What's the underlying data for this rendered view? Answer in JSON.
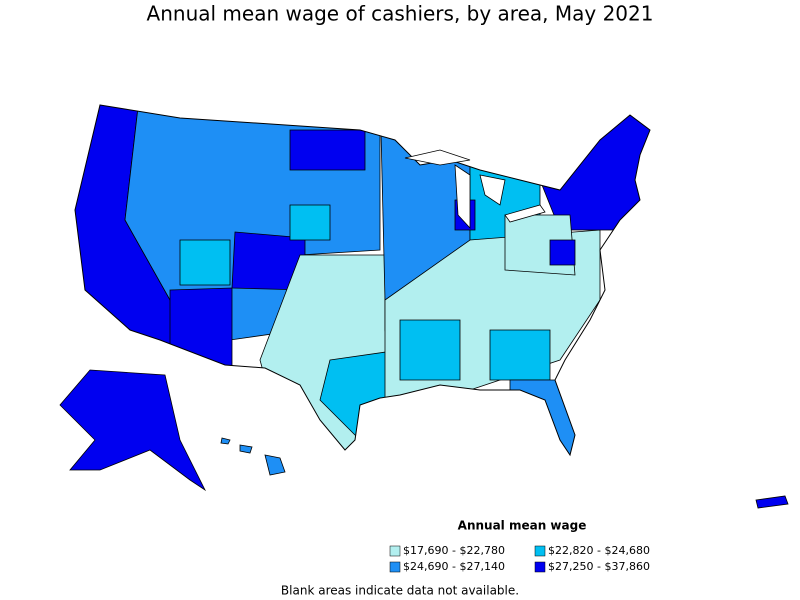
{
  "title": "Annual mean wage of cashiers, by area, May 2021",
  "legend": {
    "title": "Annual mean wage",
    "items": [
      {
        "label": "$17,690 - $22,780",
        "color": "#b2efef"
      },
      {
        "label": "$22,820 - $24,680",
        "color": "#00bff2"
      },
      {
        "label": "$24,690 - $27,140",
        "color": "#1e8ff5"
      },
      {
        "label": "$27,250 - $37,860",
        "color": "#0000f0"
      }
    ]
  },
  "footnote": "Blank areas indicate data not available."
}
